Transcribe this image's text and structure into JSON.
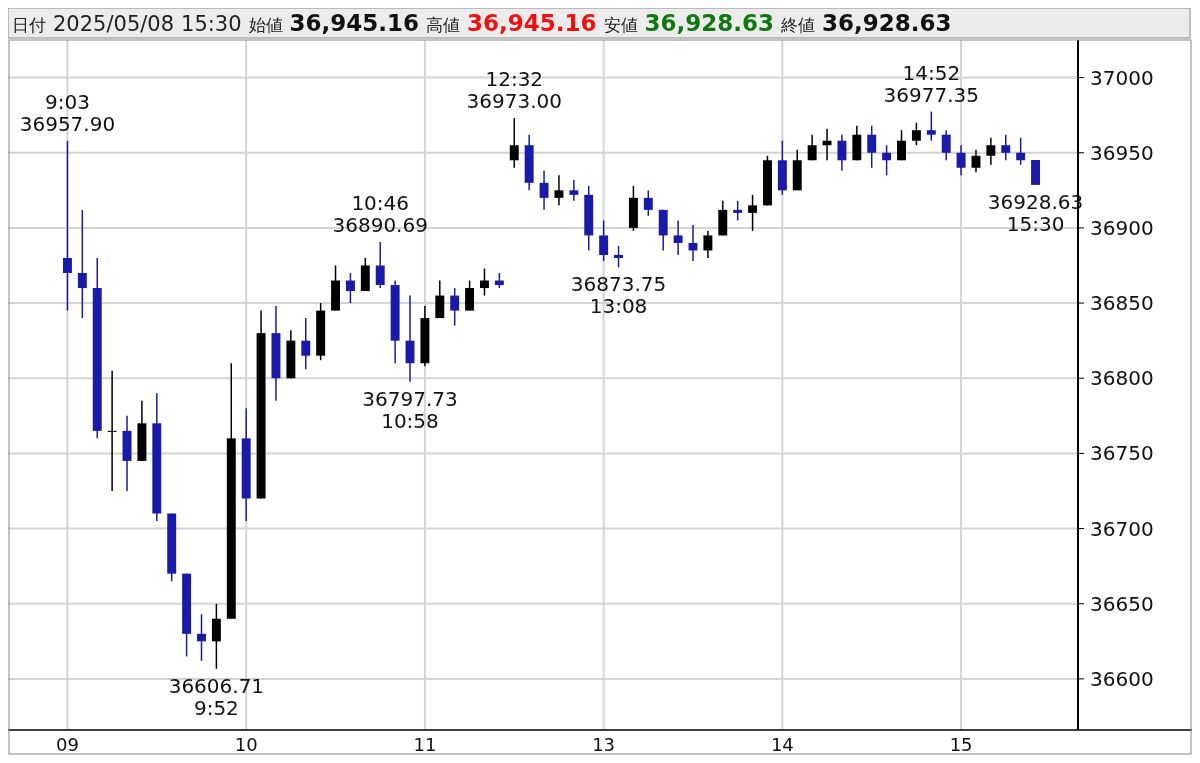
{
  "chart_data": {
    "type": "candlestick",
    "title": "日付 2025/05/08 15:30 始値 36,945.16 高値 36,945.16 安値 36,928.63 終値 36,928.63",
    "categories": [
      "09",
      null,
      null,
      null,
      null,
      null,
      null,
      null,
      null,
      null,
      null,
      null,
      "10",
      null,
      null,
      null,
      null,
      null,
      null,
      null,
      null,
      null,
      null,
      null,
      "11",
      null,
      null,
      null,
      null,
      null,
      null,
      null,
      null,
      null,
      null,
      null,
      "13",
      null,
      null,
      null,
      null,
      null,
      null,
      null,
      null,
      null,
      null,
      null,
      "14",
      null,
      null,
      null,
      null,
      null,
      null,
      null,
      null,
      null,
      null,
      null,
      "15",
      null,
      null,
      null,
      null,
      null
    ],
    "ohlc": [
      [
        36880,
        36957.9,
        36845,
        36870
      ],
      [
        36870,
        36912,
        36840,
        36860
      ],
      [
        36860,
        36880,
        36760,
        36765
      ],
      [
        36765,
        36805,
        36725,
        36765
      ],
      [
        36765,
        36775,
        36725,
        36745
      ],
      [
        36745,
        36785,
        36745,
        36770
      ],
      [
        36770,
        36790,
        36705,
        36710
      ],
      [
        36710,
        36710,
        36665,
        36670
      ],
      [
        36670,
        36670,
        36615,
        36630
      ],
      [
        36630,
        36643,
        36612,
        36625
      ],
      [
        36625,
        36650,
        36606.71,
        36640
      ],
      [
        36640,
        36810,
        36640,
        36760
      ],
      [
        36760,
        36780,
        36705,
        36720
      ],
      [
        36720,
        36845,
        36720,
        36830
      ],
      [
        36830,
        36848,
        36785,
        36800
      ],
      [
        36800,
        36832,
        36800,
        36825
      ],
      [
        36825,
        36840,
        36806,
        36815
      ],
      [
        36815,
        36850,
        36812,
        36845
      ],
      [
        36845,
        36875,
        36845,
        36865
      ],
      [
        36865,
        36870,
        36850,
        36858
      ],
      [
        36858,
        36880,
        36858,
        36875
      ],
      [
        36875,
        36890.69,
        36860,
        36862
      ],
      [
        36862,
        36865,
        36810,
        36825
      ],
      [
        36825,
        36855,
        36797.73,
        36810
      ],
      [
        36810,
        36848,
        36808,
        36840
      ],
      [
        36840,
        36865,
        36840,
        36855
      ],
      [
        36855,
        36860,
        36835,
        36845
      ],
      [
        36845,
        36865,
        36845,
        36860
      ],
      [
        36860,
        36873,
        36855,
        36865
      ],
      [
        36865,
        36870,
        36860,
        36862
      ],
      [
        36945,
        36973.0,
        36940,
        36955
      ],
      [
        36955,
        36962,
        36925,
        36930
      ],
      [
        36930,
        36938,
        36912,
        36920
      ],
      [
        36920,
        36935,
        36915,
        36925
      ],
      [
        36925,
        36932,
        36918,
        36922
      ],
      [
        36922,
        36928,
        36885,
        36895
      ],
      [
        36895,
        36905,
        36878,
        36882
      ],
      [
        36882,
        36888,
        36873.75,
        36880
      ],
      [
        36900,
        36928,
        36898,
        36920
      ],
      [
        36920,
        36925,
        36908,
        36912
      ],
      [
        36912,
        36912,
        36885,
        36895
      ],
      [
        36895,
        36905,
        36882,
        36890
      ],
      [
        36890,
        36902,
        36878,
        36885
      ],
      [
        36885,
        36898,
        36880,
        36895
      ],
      [
        36895,
        36918,
        36895,
        36912
      ],
      [
        36912,
        36918,
        36905,
        36910
      ],
      [
        36910,
        36922,
        36898,
        36915
      ],
      [
        36915,
        36948,
        36915,
        36945
      ],
      [
        36945,
        36958,
        36922,
        36925
      ],
      [
        36925,
        36952,
        36925,
        36945
      ],
      [
        36945,
        36962,
        36945,
        36955
      ],
      [
        36955,
        36966,
        36945,
        36958
      ],
      [
        36958,
        36962,
        36938,
        36945
      ],
      [
        36945,
        36968,
        36945,
        36962
      ],
      [
        36962,
        36968,
        36940,
        36950
      ],
      [
        36950,
        36955,
        36935,
        36945
      ],
      [
        36945,
        36965,
        36945,
        36958
      ],
      [
        36958,
        36970,
        36955,
        36965
      ],
      [
        36965,
        36977.35,
        36958,
        36962
      ],
      [
        36962,
        36965,
        36945,
        36950
      ],
      [
        36950,
        36955,
        36935,
        36940
      ],
      [
        36940,
        36952,
        36937,
        36948
      ],
      [
        36948,
        36960,
        36942,
        36955
      ],
      [
        36955,
        36962,
        36945,
        36950
      ],
      [
        36950,
        36960,
        36942,
        36945
      ],
      [
        36945.16,
        36945.16,
        36928.63,
        36928.63
      ]
    ],
    "ylim": [
      36566,
      37025
    ],
    "yticks": [
      36600,
      36650,
      36700,
      36750,
      36800,
      36850,
      36900,
      36950,
      37000
    ],
    "grid": true,
    "annotations": [
      {
        "text": "9:03\n36957.90",
        "y": 36957.9
      },
      {
        "text": "36606.71\n9:52",
        "y": 36606.71
      },
      {
        "text": "10:46\n36890.69",
        "y": 36890.69
      },
      {
        "text": "36797.73\n10:58",
        "y": 36797.73
      },
      {
        "text": "12:32\n36973.00",
        "y": 36973.0
      },
      {
        "text": "36873.75\n13:08",
        "y": 36873.75
      },
      {
        "text": "14:52\n36977.35",
        "y": 36977.35
      },
      {
        "text": "36928.63\n15:30",
        "y": 36928.63
      }
    ]
  }
}
